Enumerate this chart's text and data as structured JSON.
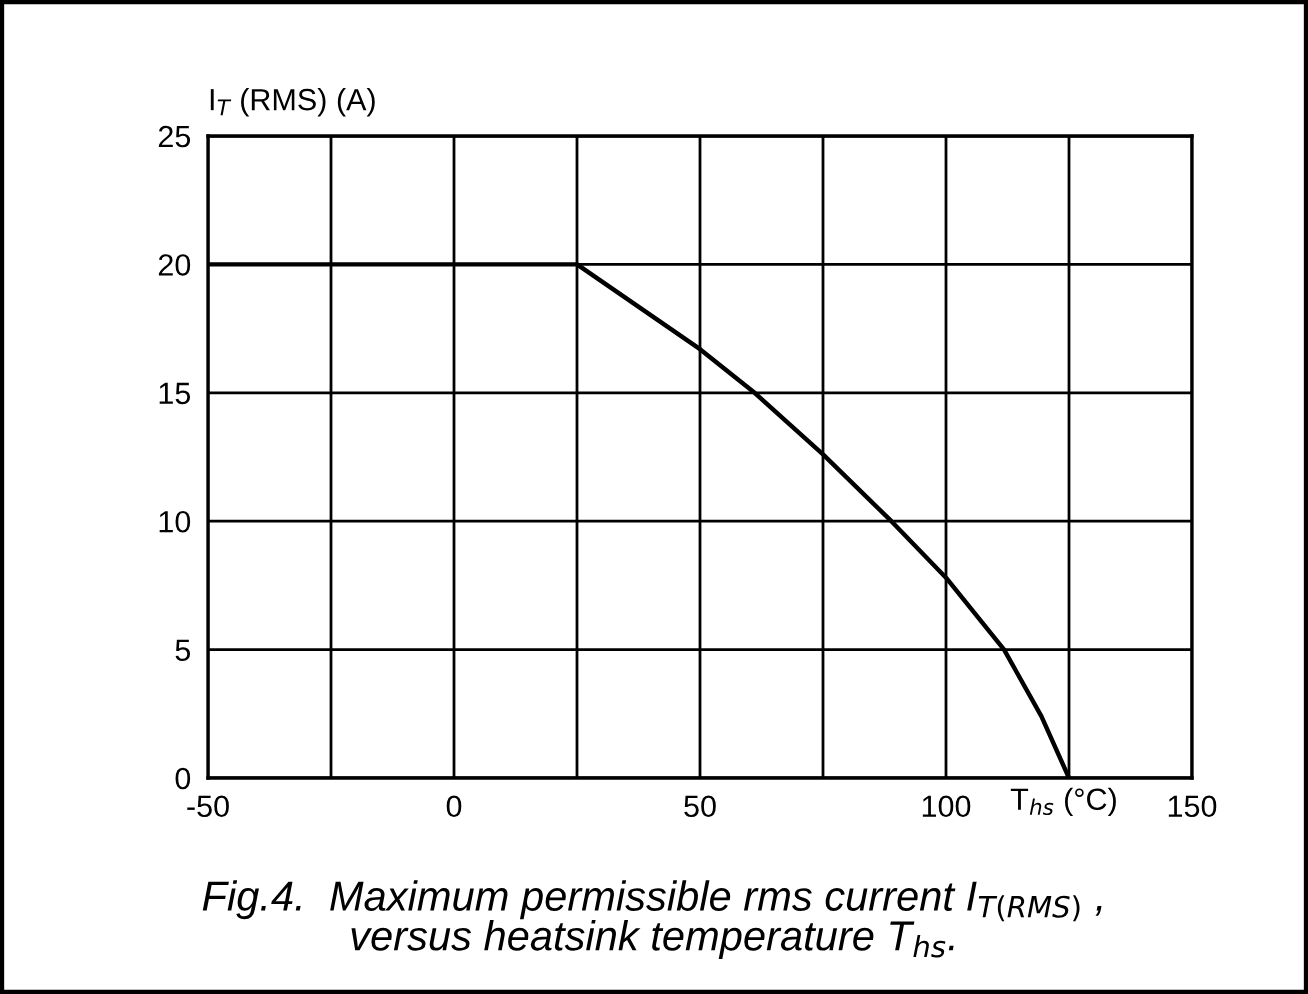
{
  "chart_data": {
    "type": "line",
    "xlabel": "T$_{hs}$ (°C)",
    "ylabel": "I$_{T}$ (RMS) (A)",
    "x": [
      -50,
      25,
      50,
      61.1,
      75,
      88.9,
      100,
      111.8,
      119.4,
      125
    ],
    "series": [
      {
        "color": "#000000",
        "values": [
          20,
          20,
          16.7,
          15,
          12.6,
          10,
          7.8,
          5,
          2.4,
          0
        ]
      }
    ],
    "xlim": [
      -50,
      150
    ],
    "ylim": [
      0,
      25
    ],
    "xticks": [
      -50,
      {
        "value": -25,
        "label": null
      },
      0,
      {
        "value": 25,
        "label": null
      },
      50,
      {
        "value": 75,
        "label": null
      },
      100,
      {
        "value": 125,
        "label": null
      },
      150
    ],
    "yticks": [
      0,
      5,
      10,
      15,
      20,
      25
    ],
    "grid": true,
    "marker": "none",
    "line_style": "solid",
    "annotations": [
      "Fig.4.  Maximum permissible rms current I$_{T(RMS)}$ ,\nversus heatsink temperature T$_{hs}$."
    ]
  }
}
